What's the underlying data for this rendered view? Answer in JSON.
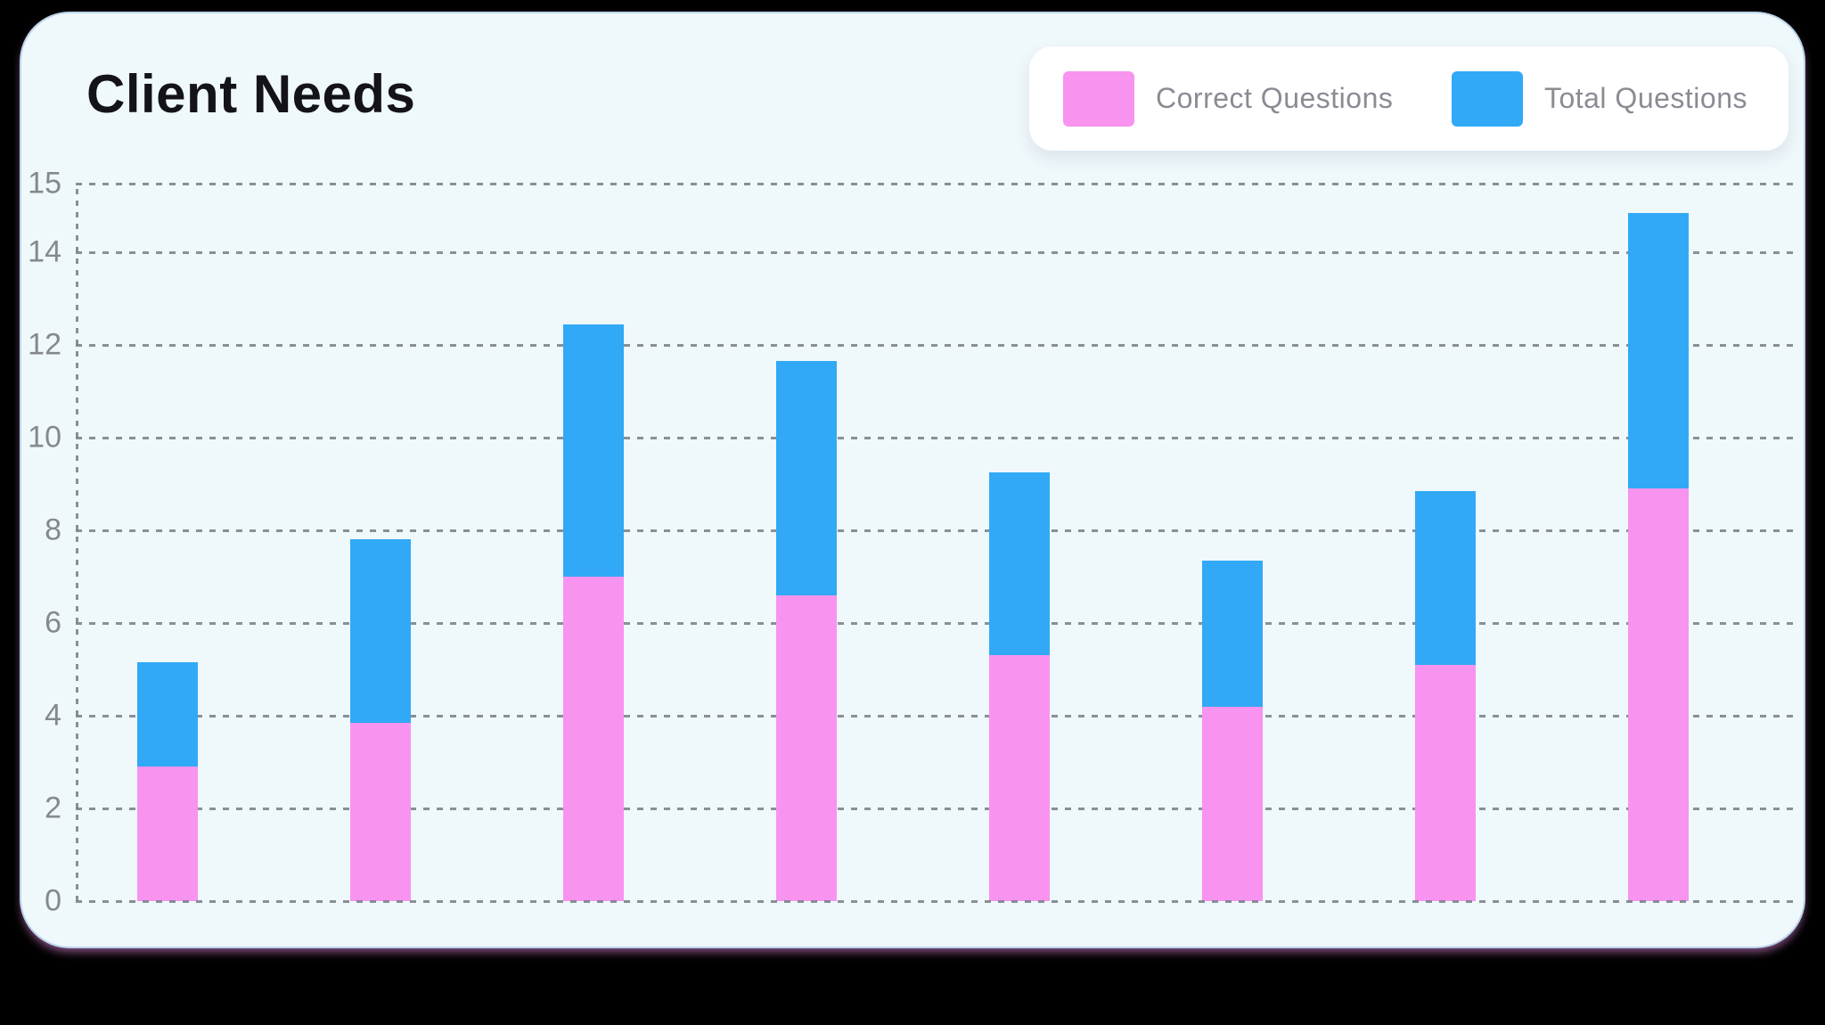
{
  "card": {
    "title": "Client Needs",
    "background_color": "#eff8fb"
  },
  "legend": {
    "items": [
      {
        "label": "Correct Questions",
        "color": "#f893ef"
      },
      {
        "label": "Total Questions",
        "color": "#31a9f6"
      }
    ]
  },
  "chart_data": {
    "type": "bar",
    "stacked": true,
    "title": "Client Needs",
    "xlabel": "",
    "ylabel": "",
    "categories": [
      "",
      "",
      "",
      "",
      "",
      "",
      "",
      ""
    ],
    "series": [
      {
        "name": "Correct Questions",
        "color": "#f893ef",
        "values": [
          2.9,
          3.85,
          7.0,
          6.6,
          5.3,
          4.2,
          5.1,
          8.9
        ]
      },
      {
        "name": "Total Questions",
        "color": "#31a9f6",
        "values": [
          2.25,
          3.95,
          5.45,
          5.05,
          3.95,
          3.15,
          3.75,
          5.95
        ]
      }
    ],
    "stack_totals": [
      5.15,
      7.8,
      12.45,
      11.65,
      9.25,
      7.35,
      8.85,
      14.85
    ],
    "ylim": [
      0,
      15
    ],
    "yticks": [
      15,
      14,
      12,
      10,
      8,
      6,
      4,
      2,
      0
    ],
    "ytick_labels": [
      "15",
      "14",
      "12",
      "10",
      "8",
      "6",
      "4",
      "2",
      "0"
    ],
    "grid": "dashed horizontal gridlines, dashed vertical axis line",
    "legend_position": "top-right",
    "gridline_color": "#767d84",
    "axis_label_color": "#85898f"
  }
}
